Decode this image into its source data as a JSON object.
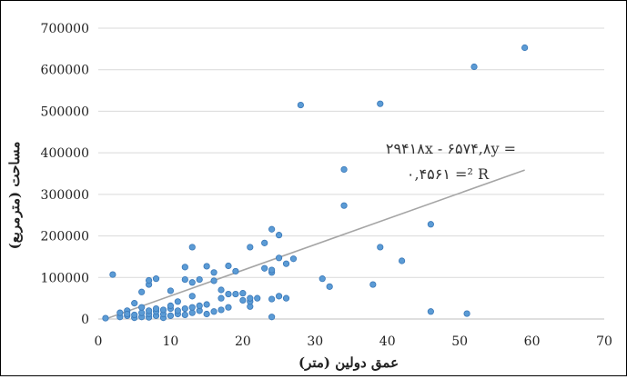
{
  "chart_data": {
    "type": "scatter",
    "xlabel": "عمق دولین (متر)",
    "ylabel": "مساحت (مترمربع)",
    "xlim": [
      0,
      70
    ],
    "ylim": [
      0,
      700000
    ],
    "x_ticks": [
      "0",
      "10",
      "20",
      "30",
      "40",
      "50",
      "60",
      "70"
    ],
    "y_ticks": [
      "0",
      "100000",
      "200000",
      "300000",
      "400000",
      "500000",
      "600000",
      "700000"
    ],
    "grid": "horizontal",
    "point_color": "#5b9bd5",
    "trendline_color": "#a5a5a5",
    "trendline": {
      "slope": 6574.8,
      "intercept": -29418
    },
    "equation_text": "۲۹۴۱۸x - ۶۵۷۴,۸y =",
    "r2_text": "۰,۴۵۶۱ =² R",
    "points": [
      [
        1,
        2000
      ],
      [
        2,
        107000
      ],
      [
        3,
        5000
      ],
      [
        3,
        15000
      ],
      [
        4,
        8000
      ],
      [
        4,
        20000
      ],
      [
        4,
        12000
      ],
      [
        5,
        3000
      ],
      [
        5,
        10000
      ],
      [
        5,
        38000
      ],
      [
        6,
        5000
      ],
      [
        6,
        15000
      ],
      [
        6,
        28000
      ],
      [
        6,
        65000
      ],
      [
        7,
        4000
      ],
      [
        7,
        12000
      ],
      [
        7,
        20000
      ],
      [
        7,
        83000
      ],
      [
        7,
        93000
      ],
      [
        8,
        8000
      ],
      [
        8,
        18000
      ],
      [
        8,
        25000
      ],
      [
        8,
        97000
      ],
      [
        9,
        3000
      ],
      [
        9,
        12000
      ],
      [
        9,
        22000
      ],
      [
        10,
        8000
      ],
      [
        10,
        25000
      ],
      [
        10,
        32000
      ],
      [
        10,
        68000
      ],
      [
        11,
        12000
      ],
      [
        11,
        20000
      ],
      [
        11,
        42000
      ],
      [
        12,
        10000
      ],
      [
        12,
        25000
      ],
      [
        12,
        95000
      ],
      [
        12,
        125000
      ],
      [
        13,
        15000
      ],
      [
        13,
        28000
      ],
      [
        13,
        55000
      ],
      [
        13,
        88000
      ],
      [
        13,
        173000
      ],
      [
        14,
        20000
      ],
      [
        14,
        32000
      ],
      [
        14,
        95000
      ],
      [
        15,
        12000
      ],
      [
        15,
        35000
      ],
      [
        15,
        127000
      ],
      [
        16,
        18000
      ],
      [
        16,
        92000
      ],
      [
        16,
        112000
      ],
      [
        17,
        22000
      ],
      [
        17,
        50000
      ],
      [
        17,
        70000
      ],
      [
        18,
        28000
      ],
      [
        18,
        60000
      ],
      [
        18,
        128000
      ],
      [
        19,
        60000
      ],
      [
        19,
        115000
      ],
      [
        20,
        45000
      ],
      [
        20,
        62000
      ],
      [
        21,
        30000
      ],
      [
        21,
        42000
      ],
      [
        21,
        50000
      ],
      [
        21,
        173000
      ],
      [
        22,
        50000
      ],
      [
        23,
        122000
      ],
      [
        23,
        183000
      ],
      [
        24,
        5000
      ],
      [
        24,
        48000
      ],
      [
        24,
        112000
      ],
      [
        24,
        118000
      ],
      [
        24,
        216000
      ],
      [
        25,
        55000
      ],
      [
        25,
        147000
      ],
      [
        25,
        202000
      ],
      [
        26,
        50000
      ],
      [
        26,
        133000
      ],
      [
        27,
        145000
      ],
      [
        28,
        515000
      ],
      [
        31,
        97000
      ],
      [
        32,
        78000
      ],
      [
        34,
        273000
      ],
      [
        34,
        360000
      ],
      [
        38,
        83000
      ],
      [
        39,
        173000
      ],
      [
        39,
        518000
      ],
      [
        42,
        140000
      ],
      [
        46,
        18000
      ],
      [
        46,
        228000
      ],
      [
        51,
        13000
      ],
      [
        52,
        607000
      ],
      [
        59,
        653000
      ]
    ]
  }
}
